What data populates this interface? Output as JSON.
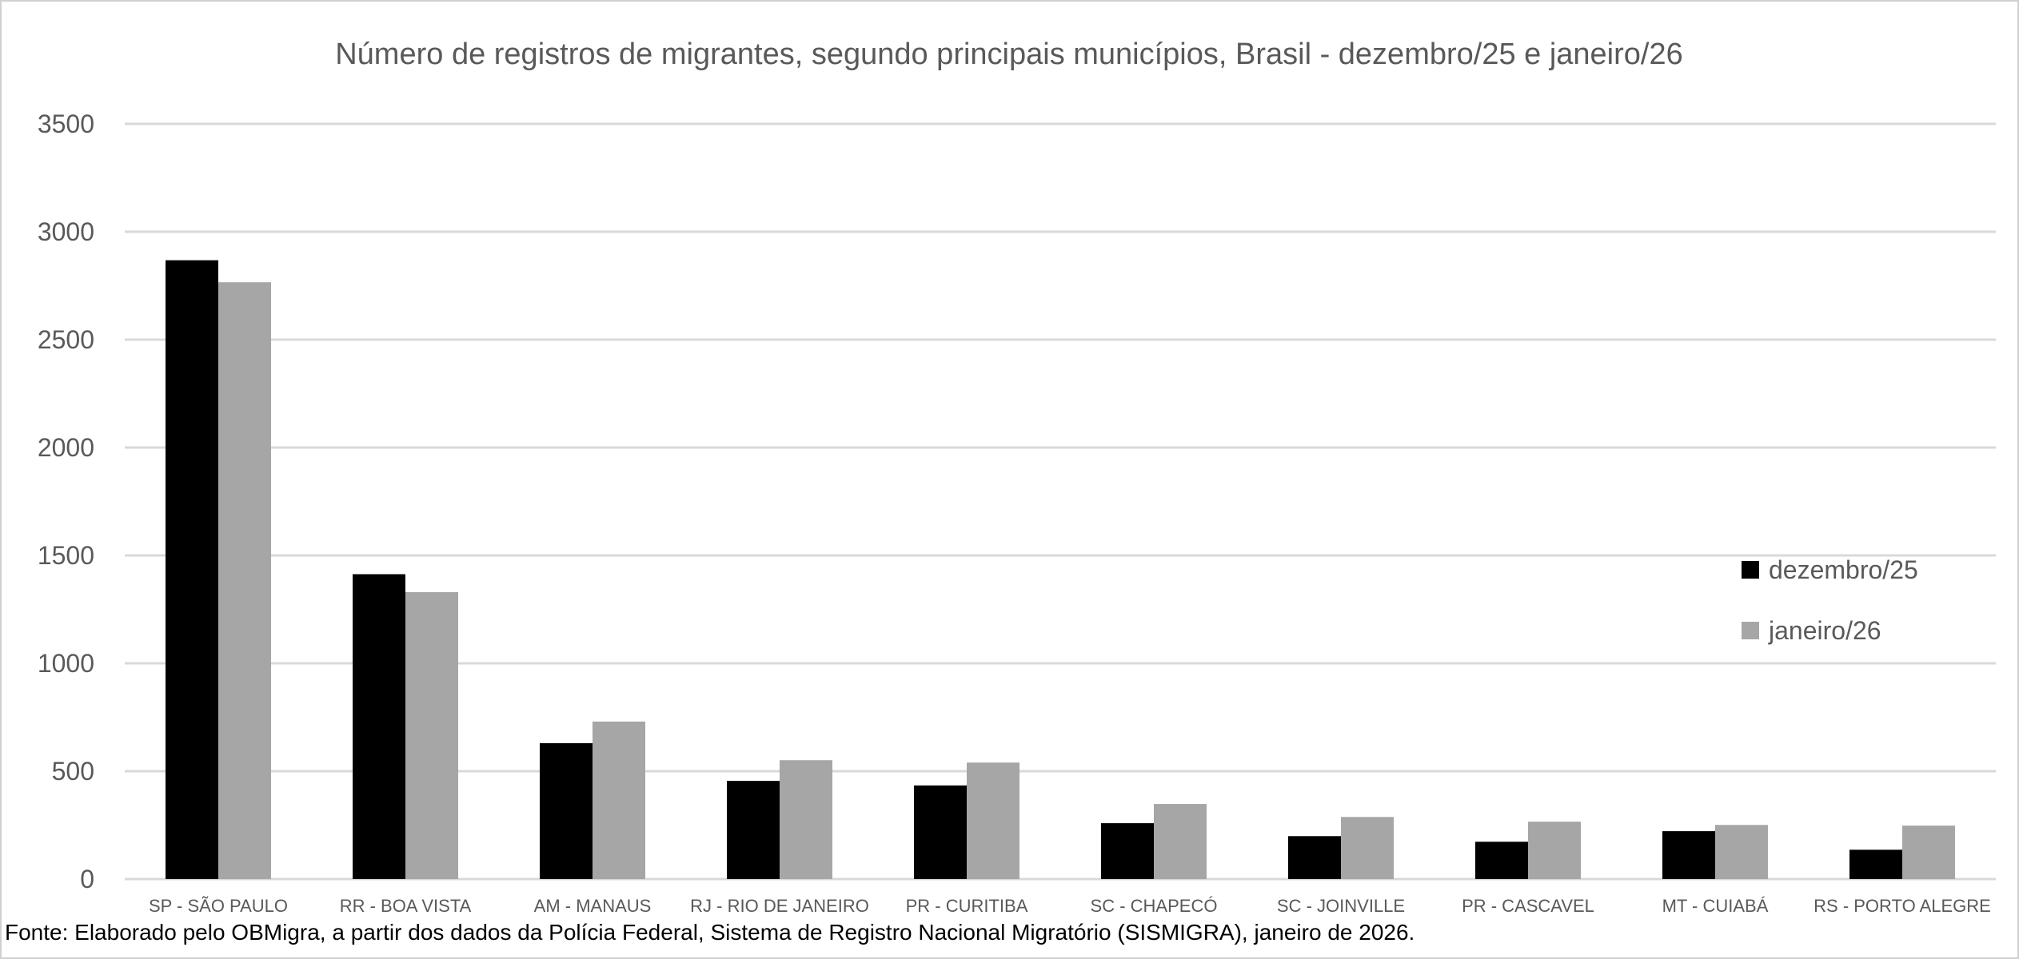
{
  "chart_data": {
    "type": "bar",
    "title": "Número de registros de migrantes, segundo principais municípios, Brasil - dezembro/25 e janeiro/26",
    "xlabel": "",
    "ylabel": "",
    "ylim": [
      0,
      3500
    ],
    "yticks": [
      0,
      500,
      1000,
      1500,
      2000,
      2500,
      3000,
      3500
    ],
    "grid": true,
    "legend_position": "right",
    "categories": [
      "SP - SÃO PAULO",
      "RR - BOA VISTA",
      "AM - MANAUS",
      "RJ - RIO DE JANEIRO",
      "PR - CURITIBA",
      "SC - CHAPECÓ",
      "SC - JOINVILLE",
      "PR - CASCAVEL",
      "MT - CUIABÁ",
      "RS - PORTO ALEGRE"
    ],
    "series": [
      {
        "name": "dezembro/25",
        "color": "#000000",
        "values": [
          2868,
          1413,
          630,
          455,
          434,
          259,
          199,
          173,
          222,
          136
        ]
      },
      {
        "name": "janeiro/26",
        "color": "#a6a6a6",
        "values": [
          2766,
          1330,
          730,
          551,
          540,
          348,
          288,
          266,
          251,
          248
        ]
      }
    ],
    "source": "Fonte: Elaborado pelo OBMigra, a partir dos dados da Polícia Federal, Sistema de Registro Nacional Migratório (SISMIGRA), janeiro de 2026."
  }
}
